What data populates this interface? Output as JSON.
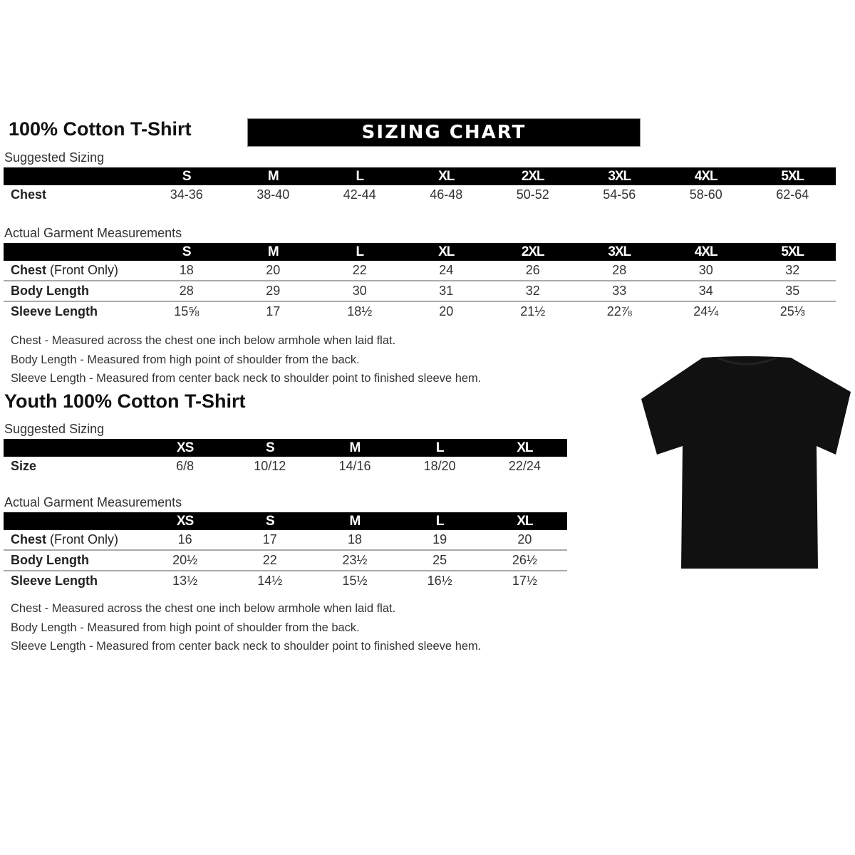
{
  "adult": {
    "title": "100% Cotton T-Shirt",
    "banner": "SIZING CHART",
    "suggested_label": "Suggested Sizing",
    "sizes": [
      "S",
      "M",
      "L",
      "XL",
      "2XL",
      "3XL",
      "4XL",
      "5XL"
    ],
    "suggested_row": {
      "label": "Chest",
      "values": [
        "34-36",
        "38-40",
        "42-44",
        "46-48",
        "50-52",
        "54-56",
        "58-60",
        "62-64"
      ]
    },
    "actual_label": "Actual Garment Measurements",
    "actual_rows": [
      {
        "label": "Chest",
        "label_note": "(Front Only)",
        "values": [
          "18",
          "20",
          "22",
          "24",
          "26",
          "28",
          "30",
          "32"
        ]
      },
      {
        "label": "Body Length",
        "label_note": "",
        "values": [
          "28",
          "29",
          "30",
          "31",
          "32",
          "33",
          "34",
          "35"
        ]
      },
      {
        "label": "Sleeve Length",
        "label_note": "",
        "values": [
          "15⅝",
          "17",
          "18½",
          "20",
          "21½",
          "22⅞",
          "24¼",
          "25⅓"
        ]
      }
    ],
    "notes": [
      "Chest - Measured across the chest one inch below armhole when laid flat.",
      "Body Length - Measured from high point of shoulder from the back.",
      "Sleeve Length - Measured from center back neck to shoulder point to finished sleeve hem."
    ]
  },
  "youth": {
    "title": "Youth 100% Cotton T-Shirt",
    "suggested_label": "Suggested Sizing",
    "sizes": [
      "XS",
      "S",
      "M",
      "L",
      "XL"
    ],
    "suggested_row": {
      "label": "Size",
      "values": [
        "6/8",
        "10/12",
        "14/16",
        "18/20",
        "22/24"
      ]
    },
    "actual_label": "Actual Garment Measurements",
    "actual_rows": [
      {
        "label": "Chest",
        "label_note": "(Front Only)",
        "values": [
          "16",
          "17",
          "18",
          "19",
          "20"
        ]
      },
      {
        "label": "Body Length",
        "label_note": "",
        "values": [
          "20½",
          "22",
          "23½",
          "25",
          "26½"
        ]
      },
      {
        "label": "Sleeve Length",
        "label_note": "",
        "values": [
          "13½",
          "14½",
          "15½",
          "16½",
          "17½"
        ]
      }
    ],
    "notes": [
      "Chest - Measured across the chest one inch below armhole when laid flat.",
      "Body Length - Measured from high point of shoulder from the back.",
      "Sleeve Length - Measured from center back neck to shoulder point to finished sleeve hem."
    ]
  },
  "image": {
    "icon": "tshirt-icon",
    "color": "#111111"
  }
}
